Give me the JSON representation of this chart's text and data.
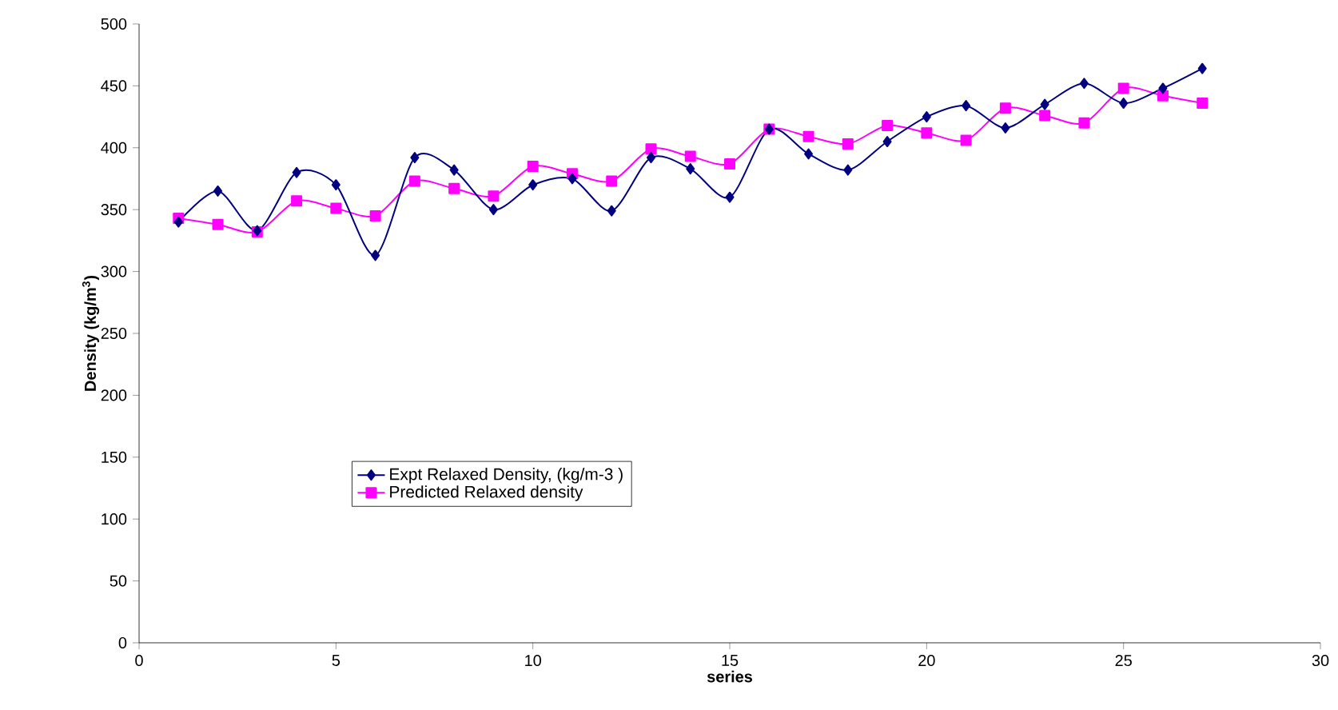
{
  "chart_data": {
    "type": "line",
    "xlabel": "series",
    "ylabel": "Density (kg/m$^{3}$)",
    "x": [
      1,
      2,
      3,
      4,
      5,
      6,
      7,
      8,
      9,
      10,
      11,
      12,
      13,
      14,
      15,
      16,
      17,
      18,
      19,
      20,
      21,
      22,
      23,
      24,
      25,
      26,
      27
    ],
    "series": [
      {
        "name": "Expt Relaxed Density, (kg/m-3 )",
        "color": "#000080",
        "marker": "diamond",
        "values": [
          340,
          365,
          333,
          380,
          370,
          313,
          392,
          382,
          350,
          370,
          375,
          349,
          392,
          383,
          360,
          415,
          395,
          382,
          405,
          425,
          434,
          416,
          435,
          452,
          436,
          448,
          464
        ]
      },
      {
        "name": "Predicted Relaxed density",
        "color": "#ff00ff",
        "marker": "square",
        "values": [
          343,
          338,
          332,
          357,
          351,
          345,
          373,
          367,
          361,
          385,
          379,
          373,
          399,
          393,
          387,
          415,
          409,
          403,
          418,
          412,
          406,
          432,
          426,
          420,
          448,
          442,
          436
        ]
      }
    ],
    "xlim": [
      0,
      30
    ],
    "xticks": [
      0,
      5,
      10,
      15,
      20,
      25,
      30
    ],
    "ylim": [
      0,
      500
    ],
    "yticks": [
      0,
      50,
      100,
      150,
      200,
      250,
      300,
      350,
      400,
      450,
      500
    ],
    "legend": "left",
    "grid": false
  }
}
